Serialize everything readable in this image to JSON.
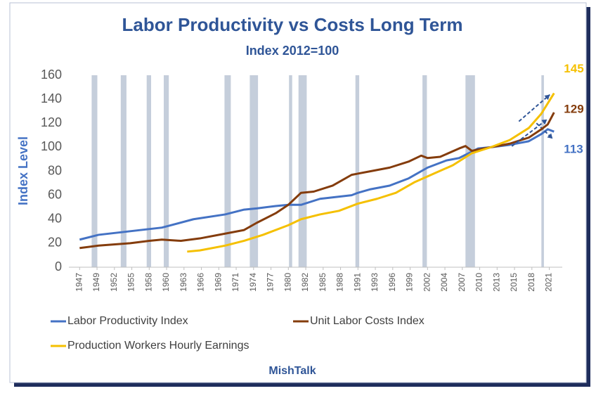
{
  "chart_data": {
    "type": "line",
    "title": "Labor Productivity vs Costs Long Term",
    "subtitle": "Index 2012=100",
    "y_label": "Index Level",
    "source": "MishTalk",
    "xlim": [
      1945.3,
      2023.3
    ],
    "xticks": [
      {
        "value": 1947,
        "label": "1947"
      },
      {
        "value": 1949.75,
        "label": "1949"
      },
      {
        "value": 1952.5,
        "label": "1952"
      },
      {
        "value": 1955.25,
        "label": "1955"
      },
      {
        "value": 1958,
        "label": "1958"
      },
      {
        "value": 1960.75,
        "label": "1960"
      },
      {
        "value": 1963.5,
        "label": "1963"
      },
      {
        "value": 1966.25,
        "label": "1966"
      },
      {
        "value": 1969,
        "label": "1969"
      },
      {
        "value": 1971.75,
        "label": "1971"
      },
      {
        "value": 1974.5,
        "label": "1974"
      },
      {
        "value": 1977.25,
        "label": "1977"
      },
      {
        "value": 1980,
        "label": "1980"
      },
      {
        "value": 1982.75,
        "label": "1982"
      },
      {
        "value": 1985.5,
        "label": "1985"
      },
      {
        "value": 1988.25,
        "label": "1988"
      },
      {
        "value": 1991,
        "label": "1991"
      },
      {
        "value": 1993.75,
        "label": "1993"
      },
      {
        "value": 1996.5,
        "label": "1996"
      },
      {
        "value": 1999.25,
        "label": "1999"
      },
      {
        "value": 2002,
        "label": "2002"
      },
      {
        "value": 2004.75,
        "label": "2004"
      },
      {
        "value": 2007.5,
        "label": "2007"
      },
      {
        "value": 2010.25,
        "label": "2010"
      },
      {
        "value": 2013,
        "label": "2013"
      },
      {
        "value": 2015.75,
        "label": "2015"
      },
      {
        "value": 2018.5,
        "label": "2018"
      },
      {
        "value": 2021.25,
        "label": "2021"
      }
    ],
    "ylim": [
      0,
      160
    ],
    "yticks": [
      0,
      20,
      40,
      60,
      80,
      100,
      120,
      140,
      160
    ],
    "grid": false,
    "recessions": [
      [
        1948.9,
        1949.8
      ],
      [
        1953.5,
        1954.4
      ],
      [
        1957.6,
        1958.3
      ],
      [
        1960.3,
        1961.1
      ],
      [
        1969.9,
        1970.9
      ],
      [
        1973.9,
        1975.2
      ],
      [
        1980.1,
        1980.6
      ],
      [
        1981.6,
        1982.9
      ],
      [
        1990.6,
        1991.2
      ],
      [
        2001.2,
        2001.9
      ],
      [
        2008.0,
        2009.5
      ],
      [
        2020.0,
        2020.4
      ]
    ],
    "recession_color": "#c5cedb",
    "legend": "bottom",
    "series": [
      {
        "name": "Labor Productivity Index",
        "color": "#4472c4",
        "x": [
          1947,
          1950,
          1955,
          1960,
          1965,
          1970,
          1973,
          1975,
          1978,
          1980,
          1982,
          1985,
          1990,
          1991,
          1993,
          1996,
          1999,
          2002,
          2005,
          2007,
          2010,
          2012,
          2015,
          2018,
          2020,
          2021,
          2022
        ],
        "values": [
          23,
          27,
          30,
          33,
          40,
          44,
          48,
          49,
          51,
          52,
          52,
          57,
          60,
          62,
          65,
          68,
          74,
          83,
          89,
          91,
          99,
          100,
          102,
          105,
          111,
          115,
          113
        ],
        "value_labels": [
          null,
          null,
          null,
          null,
          null,
          null,
          null,
          null,
          null,
          null,
          null,
          null,
          null,
          null,
          null,
          null,
          null,
          null,
          null,
          null,
          null,
          null,
          null,
          null,
          null,
          null,
          "113"
        ]
      },
      {
        "name": "Unit Labor Costs Index",
        "color": "#843c0c",
        "x": [
          1947,
          1950,
          1955,
          1958,
          1960,
          1963,
          1966,
          1970,
          1973,
          1975,
          1978,
          1980,
          1982,
          1984,
          1987,
          1990,
          1993,
          1996,
          1999,
          2001,
          2002,
          2004,
          2007,
          2008,
          2009,
          2012,
          2015,
          2018,
          2020,
          2021,
          2022
        ],
        "values": [
          16,
          18,
          20,
          22,
          23,
          22,
          24,
          28,
          31,
          37,
          45,
          52,
          62,
          63,
          68,
          77,
          80,
          83,
          88,
          93,
          91,
          92,
          99,
          101,
          97,
          100,
          103,
          108,
          115,
          119,
          129
        ],
        "value_labels": [
          null,
          null,
          null,
          null,
          null,
          null,
          null,
          null,
          null,
          null,
          null,
          null,
          null,
          null,
          null,
          null,
          null,
          null,
          null,
          null,
          null,
          null,
          null,
          null,
          null,
          null,
          null,
          null,
          null,
          null,
          "129"
        ]
      },
      {
        "name": "Production Workers Hourly Earnings",
        "color": "#f5c000",
        "x": [
          1964,
          1966,
          1970,
          1973,
          1976,
          1980,
          1982,
          1985,
          1988,
          1991,
          1994,
          1997,
          2000,
          2003,
          2006,
          2009,
          2012,
          2015,
          2018,
          2020,
          2022
        ],
        "values": [
          13,
          14,
          18,
          22,
          27,
          35,
          40,
          44,
          47,
          53,
          57,
          62,
          71,
          78,
          85,
          95,
          100,
          106,
          116,
          128,
          145
        ],
        "value_labels": [
          null,
          null,
          null,
          null,
          null,
          null,
          null,
          null,
          null,
          null,
          null,
          null,
          null,
          null,
          null,
          null,
          null,
          null,
          null,
          null,
          "145"
        ]
      }
    ]
  }
}
